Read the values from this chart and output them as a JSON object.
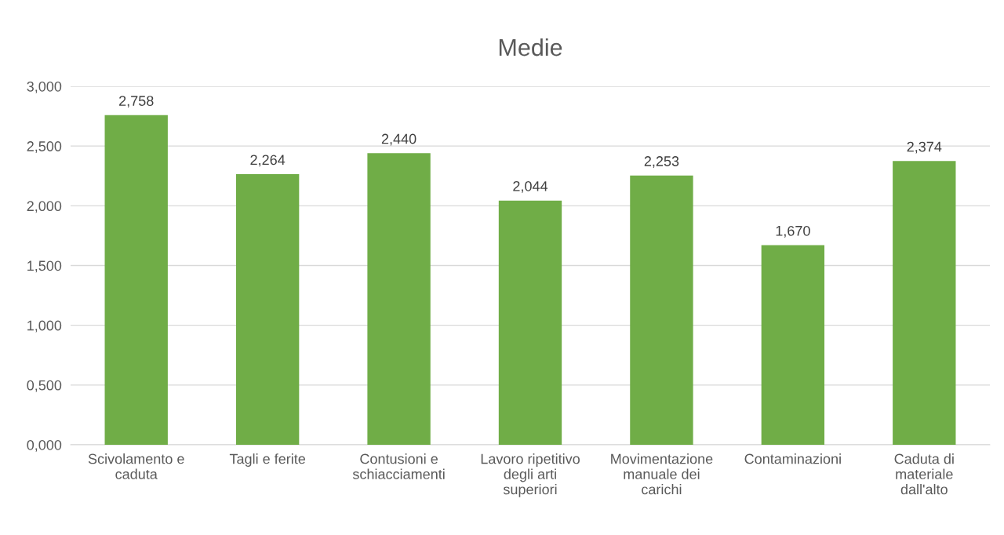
{
  "chart_data": {
    "type": "bar",
    "title": "Medie",
    "categories": [
      "Scivolamento e caduta",
      "Tagli e ferite",
      "Contusioni e schiacciamenti",
      "Lavoro ripetitivo degli arti superiori",
      "Movimentazione manuale dei carichi",
      "Contaminazioni",
      "Caduta di materiale dall'alto"
    ],
    "values": [
      2.758,
      2.264,
      2.44,
      2.044,
      2.253,
      1.67,
      2.374
    ],
    "value_labels": [
      "2,758",
      "2,264",
      "2,440",
      "2,044",
      "2,253",
      "1,670",
      "2,374"
    ],
    "color": "#70ad47",
    "ylim": [
      0,
      3
    ],
    "yticks": [
      {
        "value": 0,
        "label": "0,000"
      },
      {
        "value": 0.5,
        "label": "0,500"
      },
      {
        "value": 1,
        "label": "1,000"
      },
      {
        "value": 1.5,
        "label": "1,500"
      },
      {
        "value": 2,
        "label": "2,000"
      },
      {
        "value": 2.5,
        "label": "2,500"
      },
      {
        "value": 3,
        "label": "3,000"
      }
    ],
    "grid": "y",
    "legend": false
  }
}
